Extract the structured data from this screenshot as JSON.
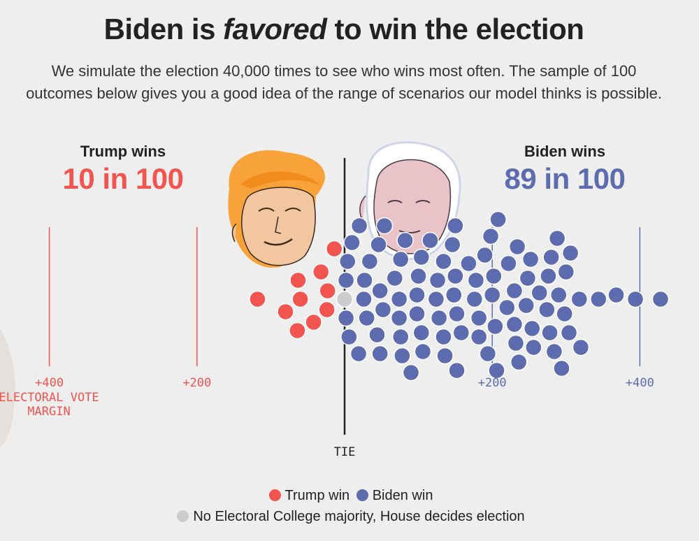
{
  "header": {
    "title_prefix": "Biden is ",
    "title_emphasis": "favored",
    "title_suffix": " to win the election",
    "subtitle": "We simulate the election 40,000 times to see who wins most often. The sample of 100 outcomes below gives you a good idea of the range of scenarios our model thinks is possible."
  },
  "trump": {
    "label": "Trump wins",
    "count": "10 in 100"
  },
  "biden": {
    "label": "Biden wins",
    "count": "89 in 100"
  },
  "legend": {
    "trump": "Trump win",
    "biden": "Biden win",
    "none": "No Electoral College majority, House decides election"
  },
  "colors": {
    "trump": "#f2544f",
    "biden": "#5c6cae",
    "tie": "#cccccc",
    "trump_text": "#f2544f",
    "biden_text": "#5c6cae"
  },
  "chart_data": {
    "type": "scatter",
    "title": "Biden is favored to win the election",
    "xlabel": "ELECTORAL VOTE MARGIN",
    "x_range": [
      -500,
      500
    ],
    "ticks": [
      {
        "value": -400,
        "label": "+400"
      },
      {
        "value": -200,
        "label": "+200"
      },
      {
        "value": 200,
        "label": "+200"
      },
      {
        "value": 400,
        "label": "+400"
      }
    ],
    "axis_label_lines": [
      "ELECTORAL VOTE",
      "MARGIN"
    ],
    "tie_label": "TIE",
    "counts": {
      "trump": 10,
      "biden": 89,
      "house": 1
    },
    "series": [
      {
        "name": "Trump win",
        "values": [
          -118,
          -80,
          -63,
          -64,
          -60,
          -42,
          -32,
          -24,
          -23,
          -14
        ]
      },
      {
        "name": "House decides",
        "values": [
          0
        ]
      },
      {
        "name": "Biden win",
        "values": [
          2,
          2,
          4,
          6,
          10,
          19,
          20,
          26,
          27,
          30,
          34,
          44,
          46,
          48,
          48,
          52,
          54,
          68,
          74,
          74,
          76,
          76,
          78,
          82,
          90,
          98,
          98,
          100,
          104,
          104,
          106,
          116,
          124,
          126,
          128,
          134,
          134,
          136,
          146,
          148,
          150,
          150,
          152,
          152,
          158,
          168,
          176,
          178,
          182,
          182,
          190,
          194,
          198,
          200,
          202,
          204,
          206,
          208,
          220,
          222,
          230,
          230,
          232,
          234,
          236,
          246,
          248,
          252,
          254,
          256,
          264,
          274,
          276,
          278,
          280,
          284,
          288,
          290,
          294,
          298,
          300,
          304,
          306,
          318,
          320,
          344,
          368,
          394,
          428
        ]
      }
    ]
  }
}
